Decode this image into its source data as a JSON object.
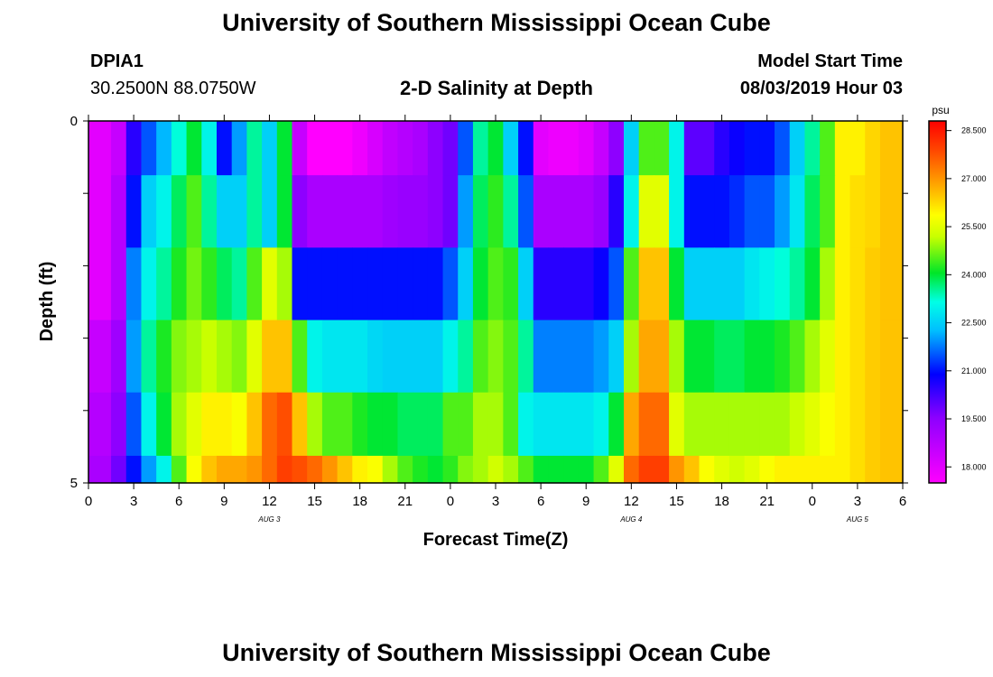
{
  "header": {
    "title": "University of Southern Mississippi Ocean Cube",
    "station_id": "DPIA1",
    "station_coords": "30.2500N 88.0750W",
    "plot_title": "2-D Salinity at Depth",
    "model_start_label": "Model Start Time",
    "model_start_value": "08/03/2019 Hour 03"
  },
  "footer": {
    "title": "University of Southern Mississippi Ocean Cube"
  },
  "chart_data": {
    "type": "heatmap",
    "title": "2-D Salinity at Depth",
    "xlabel": "Forecast Time(Z)",
    "ylabel": "Depth (ft)",
    "x_tick_labels": [
      "0",
      "3",
      "6",
      "9",
      "12",
      "15",
      "18",
      "21",
      "0",
      "3",
      "6",
      "9",
      "12",
      "15",
      "18",
      "21",
      "0",
      "3",
      "6"
    ],
    "x_date_labels": [
      "AUG 3",
      "AUG 4",
      "AUG 5"
    ],
    "y_tick_labels": [
      "0",
      "5"
    ],
    "ylim": [
      0,
      5
    ],
    "colorbar": {
      "unit": "psu",
      "tick_labels": [
        "28.500",
        "27.000",
        "25.500",
        "24.000",
        "22.500",
        "21.000",
        "19.500",
        "18.000"
      ],
      "range": [
        17.5,
        28.8
      ]
    },
    "hours": [
      0,
      1,
      2,
      3,
      4,
      5,
      6,
      7,
      8,
      9,
      10,
      11,
      12,
      13,
      14,
      15,
      16,
      17,
      18,
      19,
      20,
      21,
      22,
      23,
      24,
      25,
      26,
      27,
      28,
      29,
      30,
      31,
      32,
      33,
      34,
      35,
      36,
      37,
      38,
      39,
      40,
      41,
      42,
      43,
      44,
      45,
      46,
      47,
      48,
      49,
      50,
      51,
      52,
      53,
      54
    ],
    "depth_layers_ft": [
      0.25,
      1.25,
      2.25,
      3.25,
      4.25,
      5.0
    ],
    "salinity": [
      [
        18.0,
        18.0,
        18.5,
        20.5,
        21.5,
        22.2,
        23.2,
        24.0,
        23.0,
        21.0,
        22.0,
        23.5,
        22.5,
        24.0,
        18.5,
        17.5,
        17.5,
        17.5,
        17.8,
        18.2,
        18.6,
        18.8,
        19.0,
        19.5,
        19.8,
        21.5,
        23.5,
        24.0,
        22.5,
        21.0,
        18.0,
        17.8,
        17.8,
        18.0,
        18.5,
        19.5,
        22.5,
        24.5,
        24.5,
        23.0,
        20.0,
        20.0,
        20.5,
        20.8,
        21.0,
        21.0,
        21.5,
        22.5,
        23.5,
        24.5,
        26.0,
        26.0,
        26.3,
        26.5,
        26.5
      ],
      [
        18.0,
        18.0,
        18.8,
        21.0,
        22.5,
        23.0,
        23.8,
        24.5,
        23.5,
        22.5,
        22.5,
        23.5,
        22.5,
        24.0,
        19.5,
        19.0,
        19.0,
        19.0,
        19.0,
        19.0,
        19.2,
        19.3,
        19.3,
        19.5,
        19.8,
        22.0,
        23.8,
        24.3,
        23.5,
        21.5,
        19.0,
        19.0,
        19.0,
        19.0,
        19.3,
        20.5,
        23.0,
        25.5,
        25.5,
        23.0,
        21.0,
        21.0,
        21.0,
        21.2,
        21.5,
        21.5,
        22.0,
        22.8,
        23.8,
        24.5,
        26.0,
        26.2,
        26.3,
        26.5,
        26.5
      ],
      [
        18.0,
        18.0,
        18.8,
        21.8,
        23.0,
        23.5,
        24.2,
        24.7,
        24.3,
        23.8,
        23.5,
        24.5,
        25.5,
        25.0,
        21.0,
        21.0,
        21.0,
        21.0,
        21.0,
        21.0,
        21.0,
        21.0,
        21.0,
        21.0,
        21.5,
        22.5,
        24.0,
        24.5,
        24.3,
        22.5,
        20.5,
        20.5,
        20.5,
        20.5,
        20.8,
        21.5,
        24.5,
        26.5,
        26.5,
        24.0,
        22.5,
        22.5,
        22.5,
        22.5,
        22.8,
        23.0,
        23.2,
        23.5,
        24.0,
        25.0,
        26.0,
        26.2,
        26.4,
        26.5,
        26.5
      ],
      [
        18.5,
        18.5,
        19.2,
        22.0,
        23.5,
        24.2,
        24.8,
        25.0,
        25.2,
        25.0,
        24.8,
        25.5,
        26.5,
        26.5,
        24.5,
        23.0,
        22.8,
        22.8,
        22.8,
        22.6,
        22.5,
        22.5,
        22.5,
        22.5,
        23.0,
        23.5,
        24.5,
        24.8,
        24.5,
        23.5,
        21.8,
        21.8,
        21.8,
        21.8,
        22.0,
        22.5,
        25.0,
        26.8,
        26.8,
        25.0,
        24.0,
        24.0,
        23.8,
        23.8,
        24.0,
        24.0,
        24.2,
        24.5,
        25.0,
        25.5,
        26.0,
        26.2,
        26.4,
        26.5,
        26.5
      ],
      [
        18.8,
        18.8,
        19.5,
        21.5,
        23.0,
        24.0,
        25.0,
        25.5,
        26.0,
        26.0,
        25.8,
        26.5,
        27.5,
        27.8,
        26.5,
        25.0,
        24.5,
        24.5,
        24.2,
        24.0,
        24.0,
        23.8,
        23.8,
        23.8,
        24.5,
        24.5,
        25.0,
        25.0,
        24.5,
        23.0,
        22.8,
        22.8,
        22.8,
        22.8,
        23.0,
        24.0,
        26.8,
        27.5,
        27.5,
        25.5,
        25.0,
        25.0,
        25.0,
        25.0,
        25.0,
        25.0,
        25.0,
        25.2,
        25.5,
        25.8,
        26.0,
        26.2,
        26.4,
        26.5,
        26.5
      ],
      [
        19.0,
        19.0,
        19.8,
        21.0,
        22.0,
        23.0,
        24.5,
        25.8,
        26.5,
        26.8,
        26.8,
        27.0,
        27.5,
        28.0,
        27.8,
        27.5,
        27.0,
        26.5,
        26.0,
        25.8,
        25.0,
        24.5,
        24.2,
        24.0,
        24.3,
        24.8,
        25.0,
        25.3,
        25.0,
        24.5,
        24.0,
        24.0,
        24.0,
        24.0,
        24.5,
        25.5,
        27.5,
        28.0,
        28.0,
        27.0,
        26.5,
        25.8,
        25.5,
        25.3,
        25.5,
        25.8,
        26.0,
        26.0,
        26.0,
        26.0,
        26.0,
        26.2,
        26.4,
        26.5,
        26.5
      ]
    ]
  }
}
